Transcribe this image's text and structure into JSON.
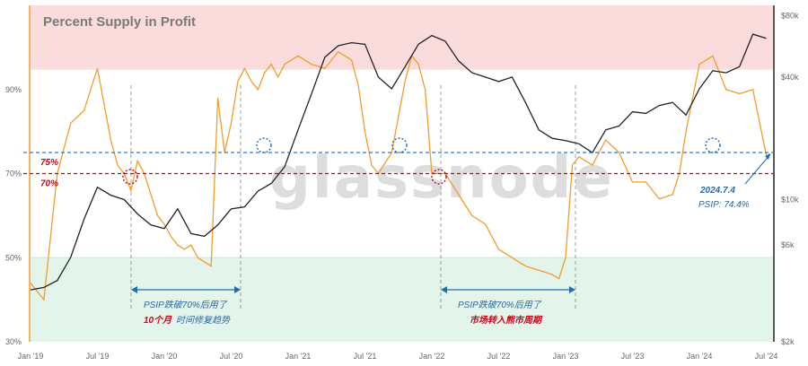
{
  "chart_data": {
    "type": "line",
    "title": "Percent Supply in Profit",
    "watermark": "glassnode",
    "x_ticks": [
      "Jan '19",
      "Jul '19",
      "Jan '20",
      "Jul '20",
      "Jan '21",
      "Jul '21",
      "Jan '22",
      "Jul '22",
      "Jan '23",
      "Jul '23",
      "Jan '24",
      "Jul '24"
    ],
    "y_left_ticks": [
      "30%",
      "50%",
      "70%",
      "90%"
    ],
    "y_right_ticks": [
      "$2k",
      "$6k",
      "$10k",
      "$40k",
      "$80k"
    ],
    "y_left_range": [
      30,
      110
    ],
    "y_right_range_usd": [
      2000,
      90000
    ],
    "y_right_scale": "log",
    "zones": [
      {
        "name": "high-profit-zone",
        "from": 95,
        "to": 110,
        "color": "#fadcdc"
      },
      {
        "name": "low-profit-zone",
        "from": 30,
        "to": 50,
        "color": "#e3f4ea"
      }
    ],
    "reference_lines": [
      {
        "label": "75%",
        "value": 75,
        "color": "#1e6bb8"
      },
      {
        "label": "70%",
        "value": 70,
        "color": "#d0021b"
      }
    ],
    "series": [
      {
        "color": "#f39c2a",
        "axis": "left",
        "x": [
          2019.0,
          2019.1,
          2019.2,
          2019.3,
          2019.4,
          2019.5,
          2019.6,
          2019.65,
          2019.7,
          2019.75,
          2019.8,
          2019.85,
          2019.9,
          2019.95,
          2020.0,
          2020.05,
          2020.1,
          2020.15,
          2020.2,
          2020.25,
          2020.3,
          2020.35,
          2020.4,
          2020.45,
          2020.5,
          2020.55,
          2020.6,
          2020.65,
          2020.7,
          2020.75,
          2020.8,
          2020.85,
          2020.9,
          2020.95,
          2021.0,
          2021.1,
          2021.2,
          2021.3,
          2021.4,
          2021.45,
          2021.5,
          2021.55,
          2021.6,
          2021.7,
          2021.8,
          2021.85,
          2021.9,
          2021.95,
          2022.0,
          2022.1,
          2022.2,
          2022.3,
          2022.4,
          2022.5,
          2022.6,
          2022.7,
          2022.8,
          2022.9,
          2022.95,
          2023.0,
          2023.05,
          2023.1,
          2023.2,
          2023.3,
          2023.4,
          2023.5,
          2023.6,
          2023.7,
          2023.8,
          2023.85,
          2023.9,
          2024.0,
          2024.1,
          2024.2,
          2024.3,
          2024.4,
          2024.5
        ],
        "y": [
          44,
          40,
          70,
          82,
          85,
          95,
          78,
          72,
          70,
          66,
          73,
          70,
          65,
          60,
          58,
          55,
          53,
          52,
          53,
          50,
          49,
          48,
          88,
          75,
          82,
          92,
          95,
          92,
          90,
          94,
          96,
          93,
          96,
          97,
          98,
          96,
          95,
          99,
          97,
          91,
          80,
          72,
          70,
          75,
          92,
          98,
          96,
          90,
          70,
          70,
          65,
          60,
          58,
          52,
          50,
          48,
          47,
          46,
          45,
          50,
          72,
          74,
          72,
          78,
          75,
          68,
          68,
          64,
          65,
          70,
          80,
          96,
          98,
          90,
          89,
          90,
          74.4
        ]
      },
      {
        "color": "#222222",
        "axis": "right",
        "x": [
          2019.0,
          2019.1,
          2019.2,
          2019.3,
          2019.4,
          2019.5,
          2019.6,
          2019.7,
          2019.8,
          2019.9,
          2020.0,
          2020.1,
          2020.2,
          2020.3,
          2020.4,
          2020.5,
          2020.6,
          2020.7,
          2020.8,
          2020.9,
          2021.0,
          2021.1,
          2021.2,
          2021.3,
          2021.4,
          2021.5,
          2021.6,
          2021.7,
          2021.8,
          2021.9,
          2022.0,
          2022.1,
          2022.2,
          2022.3,
          2022.4,
          2022.5,
          2022.6,
          2022.7,
          2022.8,
          2022.9,
          2023.0,
          2023.1,
          2023.2,
          2023.3,
          2023.4,
          2023.5,
          2023.6,
          2023.7,
          2023.8,
          2023.9,
          2024.0,
          2024.1,
          2024.2,
          2024.3,
          2024.4,
          2024.5
        ],
        "y": [
          3600,
          3700,
          4000,
          5200,
          8000,
          11500,
          10500,
          10000,
          8500,
          7500,
          7200,
          9000,
          6800,
          6600,
          7500,
          9000,
          9200,
          11000,
          12000,
          14500,
          22000,
          33000,
          50000,
          57000,
          59000,
          58000,
          40000,
          35000,
          45000,
          58000,
          64000,
          60000,
          48000,
          42000,
          40000,
          38000,
          40000,
          30000,
          22000,
          20000,
          19500,
          18800,
          17000,
          22000,
          23000,
          27000,
          26500,
          29000,
          30000,
          26000,
          35000,
          43000,
          42000,
          45000,
          65000,
          62000
        ]
      }
    ],
    "annotations": [
      {
        "text": "PSIP跌破70%后用了",
        "lines": [
          "10个月",
          "时间修复趋势"
        ]
      },
      {
        "text": "PSIP跌破70%后用了",
        "lines": [
          "市场转入熊市周期"
        ]
      },
      {
        "text": "2024.7.4",
        "value": "PSIP: 74.4%"
      }
    ]
  }
}
